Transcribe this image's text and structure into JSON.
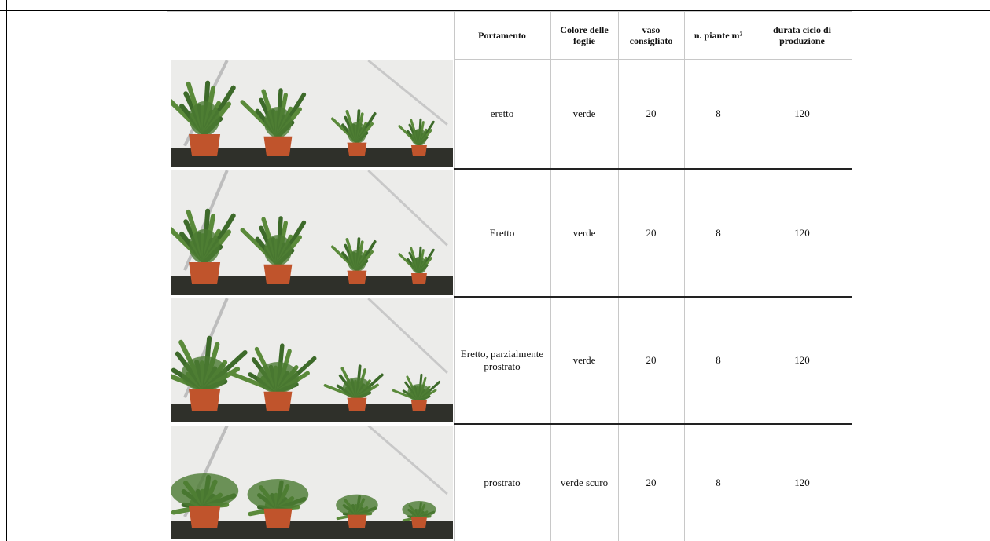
{
  "table": {
    "columns": [
      "Portamento",
      "Colore delle foglie",
      "vaso consigliato",
      "n. piante m²",
      "durata ciclo di produzione"
    ],
    "rows": [
      [
        "eretto",
        "verde",
        20,
        8,
        120
      ],
      [
        "Eretto",
        "verde",
        20,
        8,
        120
      ],
      [
        "Eretto, parzialmente prostrato",
        "verde",
        20,
        8,
        120
      ],
      [
        "prostrato",
        "verde scuro",
        20,
        8,
        120
      ]
    ]
  }
}
